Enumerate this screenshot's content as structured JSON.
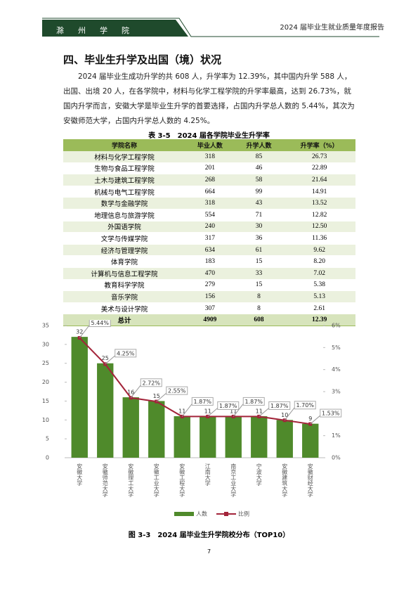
{
  "header": {
    "school": "滁州学院",
    "report": "2024 届毕业生就业质量年度报告"
  },
  "section": {
    "title": "四、毕业生升学及出国（境）状况",
    "paragraph": "2024 届毕业生成功升学的共 608 人，升学率为 12.39%，其中国内升学 588 人，出国、出境 20 人，在各学院中，材料与化学工程学院的升学率最高，达到 26.73%，就国内升学而言，安徽大学是毕业生升学的首要选择，占国内升学总人数的 5.44%，其次为安徽师范大学，占国内升学总人数的 4.25%。"
  },
  "table": {
    "caption": "表 3-5　2024 届各学院毕业生升学率",
    "columns": [
      "学院名称",
      "毕业人数",
      "升学人数",
      "升学率（%）"
    ],
    "rows": [
      [
        "材料与化学工程学院",
        "318",
        "85",
        "26.73"
      ],
      [
        "生物与食品工程学院",
        "201",
        "46",
        "22.89"
      ],
      [
        "土木与建筑工程学院",
        "268",
        "58",
        "21.64"
      ],
      [
        "机械与电气工程学院",
        "664",
        "99",
        "14.91"
      ],
      [
        "数学与金融学院",
        "318",
        "43",
        "13.52"
      ],
      [
        "地理信息与旅游学院",
        "554",
        "71",
        "12.82"
      ],
      [
        "外国语学院",
        "240",
        "30",
        "12.50"
      ],
      [
        "文学与传媒学院",
        "317",
        "36",
        "11.36"
      ],
      [
        "经济与管理学院",
        "634",
        "61",
        "9.62"
      ],
      [
        "体育学院",
        "183",
        "15",
        "8.20"
      ],
      [
        "计算机与信息工程学院",
        "470",
        "33",
        "7.02"
      ],
      [
        "教育科学学院",
        "279",
        "15",
        "5.38"
      ],
      [
        "音乐学院",
        "156",
        "8",
        "5.13"
      ],
      [
        "美术与设计学院",
        "307",
        "8",
        "2.61"
      ]
    ],
    "total": [
      "总计",
      "4909",
      "608",
      "12.39"
    ]
  },
  "chart_data": {
    "type": "bar",
    "caption": "图 3-3　2024 届毕业生升学院校分布（TOP10）",
    "categories": [
      "安徽大学",
      "安徽师范大学",
      "安徽理工大学",
      "安徽工业大学",
      "安徽工程大学",
      "江南大学",
      "南京工业大学",
      "宁波大学",
      "安徽建筑大学",
      "安徽财经大学"
    ],
    "series": [
      {
        "name": "人数",
        "type": "bar",
        "color": "#4f8a2b",
        "values": [
          32,
          25,
          16,
          15,
          11,
          11,
          11,
          11,
          10,
          9
        ]
      },
      {
        "name": "比例",
        "type": "line",
        "axis": "y2",
        "color": "#a3243a",
        "values": [
          5.44,
          4.25,
          2.72,
          2.55,
          1.87,
          1.87,
          1.87,
          1.87,
          1.7,
          1.53
        ],
        "value_labels": [
          "5.44%",
          "4.25%",
          "2.72%",
          "2.55%",
          "1.87%",
          "1.87%",
          "1.87%",
          "1.87%",
          "1.70%",
          "1.53%"
        ]
      }
    ],
    "ylim": [
      0,
      35
    ],
    "yticks": [
      0,
      5,
      10,
      15,
      20,
      25,
      30,
      35
    ],
    "y2lim": [
      0,
      6
    ],
    "y2ticks": [
      {
        "value": 0,
        "label": "0%"
      },
      {
        "value": 1,
        "label": "1%"
      },
      {
        "value": 2,
        "label": "2%"
      },
      {
        "value": 3,
        "label": "3%"
      },
      {
        "value": 4,
        "label": "4%"
      },
      {
        "value": 5,
        "label": "5%"
      },
      {
        "value": 6,
        "label": "6%"
      }
    ],
    "legend": "bottom"
  },
  "page_number": "7"
}
